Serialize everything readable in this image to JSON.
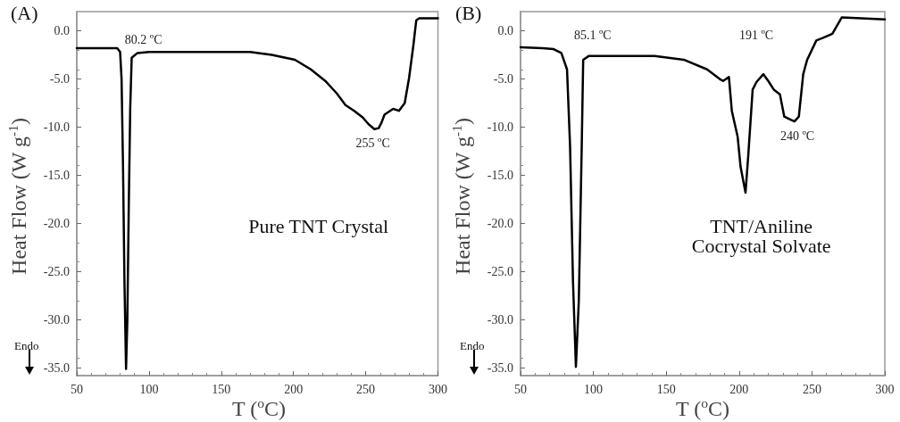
{
  "chart_data": [
    {
      "type": "line",
      "title": "(A)",
      "xlabel": "T ($^{o}$C)",
      "ylabel": "Heat Flow (W g$^{-1}$)",
      "x": [
        50,
        70,
        78,
        80,
        81,
        82,
        83,
        84.1,
        85,
        86,
        87,
        88,
        92,
        100,
        140,
        170,
        185,
        201,
        212,
        222,
        230,
        236,
        242,
        248,
        252,
        256,
        259,
        261,
        263,
        266,
        269,
        273,
        277,
        280,
        283,
        285,
        287,
        300
      ],
      "series": [
        {
          "color": "#000000",
          "values": [
            -1.8,
            -1.8,
            -1.8,
            -2.2,
            -5,
            -14,
            -26,
            -35.1,
            -30,
            -18,
            -8,
            -2.8,
            -2.3,
            -2.2,
            -2.2,
            -2.2,
            -2.5,
            -3.0,
            -4.0,
            -5.2,
            -6.5,
            -7.7,
            -8.3,
            -9.0,
            -9.7,
            -10.2,
            -10.1,
            -9.5,
            -8.7,
            -8.4,
            -8.1,
            -8.3,
            -7.5,
            -4.9,
            -1.5,
            1.1,
            1.3,
            1.3
          ]
        }
      ],
      "xlim": [
        50,
        300
      ],
      "ylim": [
        -35.8,
        2
      ],
      "xticks": [
        50,
        100,
        150,
        200,
        250,
        300
      ],
      "yticks": [
        {
          "value": 0,
          "label": "0.0"
        },
        {
          "value": -5,
          "label": "-5.0"
        },
        {
          "value": -10,
          "label": "-10.0"
        },
        {
          "value": -15,
          "label": "-15.0"
        },
        {
          "value": -20,
          "label": "-20.0"
        },
        {
          "value": -25,
          "label": "-25.0"
        },
        {
          "value": -30,
          "label": "-30.0"
        },
        {
          "value": -35,
          "label": "-35.0"
        }
      ],
      "grid": false,
      "line_style": "solid",
      "marker": "none",
      "annotations": [
        {
          "text": "80.2 ºC",
          "x": 80.2,
          "y": -1.8
        },
        {
          "text": "255 ºC",
          "x": 255,
          "y": -10.2
        },
        "Pure TNT Crystal",
        "Endo"
      ]
    },
    {
      "type": "line",
      "title": "(B)",
      "xlabel": "T ($^{o}$C)",
      "ylabel": "Heat Flow (W g$^{-1}$)",
      "x": [
        50,
        65,
        72.7,
        78,
        81.9,
        84,
        86,
        88,
        90,
        92,
        93,
        97,
        110,
        142,
        162,
        178,
        186.7,
        189,
        193,
        195,
        199,
        201,
        204.4,
        206.3,
        209.3,
        212,
        216.7,
        220,
        223.8,
        228,
        231,
        235,
        238,
        241,
        244,
        246.7,
        253,
        258,
        264,
        270.5,
        300
      ],
      "series": [
        {
          "color": "#000000",
          "values": [
            -1.7,
            -1.8,
            -1.9,
            -2.3,
            -4,
            -12,
            -26,
            -34.9,
            -28,
            -12,
            -3,
            -2.6,
            -2.6,
            -2.6,
            -3.0,
            -4.0,
            -5.0,
            -5.2,
            -4.8,
            -8.3,
            -11,
            -14.1,
            -16.8,
            -12.9,
            -6.1,
            -5.3,
            -4.5,
            -5.2,
            -6.1,
            -6.6,
            -8.9,
            -9.2,
            -9.4,
            -8.9,
            -4.5,
            -3.0,
            -1.0,
            -0.7,
            -0.3,
            1.4,
            1.2
          ]
        }
      ],
      "xlim": [
        50,
        300
      ],
      "ylim": [
        -35.8,
        2
      ],
      "xticks": [
        50,
        100,
        150,
        200,
        250,
        300
      ],
      "yticks": [
        {
          "value": 0,
          "label": "0.0"
        },
        {
          "value": -5,
          "label": "-5.0"
        },
        {
          "value": -10,
          "label": "-10.0"
        },
        {
          "value": -15,
          "label": "-15.0"
        },
        {
          "value": -20,
          "label": "-20.0"
        },
        {
          "value": -25,
          "label": "-25.0"
        },
        {
          "value": -30,
          "label": "-30.0"
        },
        {
          "value": -35,
          "label": "-35.0"
        }
      ],
      "grid": false,
      "line_style": "solid",
      "marker": "none",
      "annotations": [
        "85.1 ºC",
        "191 ºC",
        {
          "text": "240 ºC",
          "x": 240,
          "y": -9.4
        },
        "TNT/Aniline\nCocrystal Solvate",
        "Endo"
      ]
    }
  ]
}
